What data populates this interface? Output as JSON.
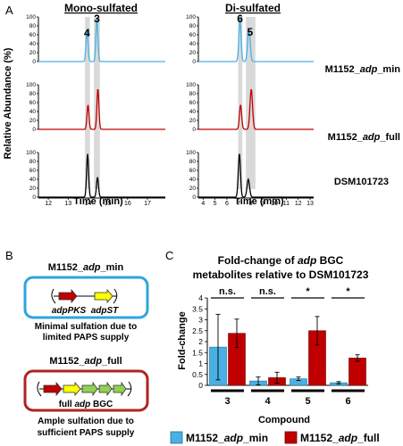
{
  "panelA": {
    "letter": "A",
    "left_title": "Mono-sulfated",
    "right_title": "Di-sulfated",
    "ylabel": "Relative Abundance (%)",
    "xlabel": "Time (min)",
    "yticks": [
      "100",
      "80",
      "60",
      "40",
      "20",
      "0"
    ],
    "left_xticks": [
      "12",
      "13",
      "14",
      "15",
      "16",
      "17"
    ],
    "right_xticks": [
      "4",
      "5",
      "6",
      "7",
      "8",
      "9",
      "10",
      "11",
      "12",
      "13"
    ],
    "left_peaks": [
      "4",
      "3"
    ],
    "right_peaks": [
      "6",
      "5"
    ],
    "traces": [
      {
        "label_prefix": "M1152_",
        "label_italic": "adp",
        "label_suffix": "_min",
        "color": "#4ab0e3"
      },
      {
        "label_prefix": "M1152_",
        "label_italic": "adp",
        "label_suffix": "_full",
        "color": "#c00000"
      },
      {
        "label_prefix": "",
        "label_italic": "",
        "label_suffix": "DSM101723",
        "color": "#000000"
      }
    ]
  },
  "panelB": {
    "letter": "B",
    "box1": {
      "title_prefix": "M1152_",
      "title_italic": "adp",
      "title_suffix": "_min",
      "genes": [
        "adpPKS",
        "adpST"
      ],
      "caption_line1": "Minimal sulfation due to",
      "caption_line2": "limited PAPS supply",
      "border_color": "#2da5dd",
      "gene_colors": [
        "#c00000",
        "#ffff00"
      ]
    },
    "box2": {
      "title_prefix": "M1152_",
      "title_italic": "adp",
      "title_suffix": "_full",
      "gene_label_prefix": "full ",
      "gene_label_italic": "adp",
      "gene_label_suffix": " BGC",
      "caption_line1": "Ample sulfation due to",
      "caption_line2": "sufficient PAPS supply",
      "border_color": "#b22222",
      "gene_colors": [
        "#c00000",
        "#ffff00",
        "#92d050",
        "#92d050",
        "#92d050"
      ]
    }
  },
  "panelC": {
    "letter": "C",
    "title_line1": "Fold-change of ",
    "title_italic": "adp",
    "title_line1_suffix": " BGC",
    "title_line2": "metabolites relative to DSM101723",
    "legend": [
      {
        "prefix": "M1152_",
        "italic": "adp",
        "suffix": "_min",
        "color": "#4ab0e3"
      },
      {
        "prefix": "M1152_",
        "italic": "adp",
        "suffix": "_full",
        "color": "#c00000"
      }
    ]
  },
  "chart_data": {
    "type": "bar",
    "title": "Fold-change of adp BGC metabolites relative to DSM101723",
    "xlabel": "Compound",
    "ylabel": "Fold-change",
    "categories": [
      "3",
      "4",
      "5",
      "6"
    ],
    "ylim": [
      0,
      4
    ],
    "yticks": [
      "0",
      "0.5",
      "1",
      "1.5",
      "2",
      "2.5",
      "3",
      "3.5",
      "4"
    ],
    "series": [
      {
        "name": "M1152_adp_min",
        "color": "#4ab0e3",
        "values": [
          1.75,
          0.2,
          0.3,
          0.12
        ],
        "errors": [
          1.5,
          0.18,
          0.08,
          0.05
        ]
      },
      {
        "name": "M1152_adp_full",
        "color": "#c00000",
        "values": [
          2.38,
          0.35,
          2.5,
          1.25
        ],
        "errors": [
          0.65,
          0.25,
          0.65,
          0.15
        ]
      }
    ],
    "significance": [
      "n.s.",
      "n.s.",
      "*",
      "*"
    ]
  }
}
